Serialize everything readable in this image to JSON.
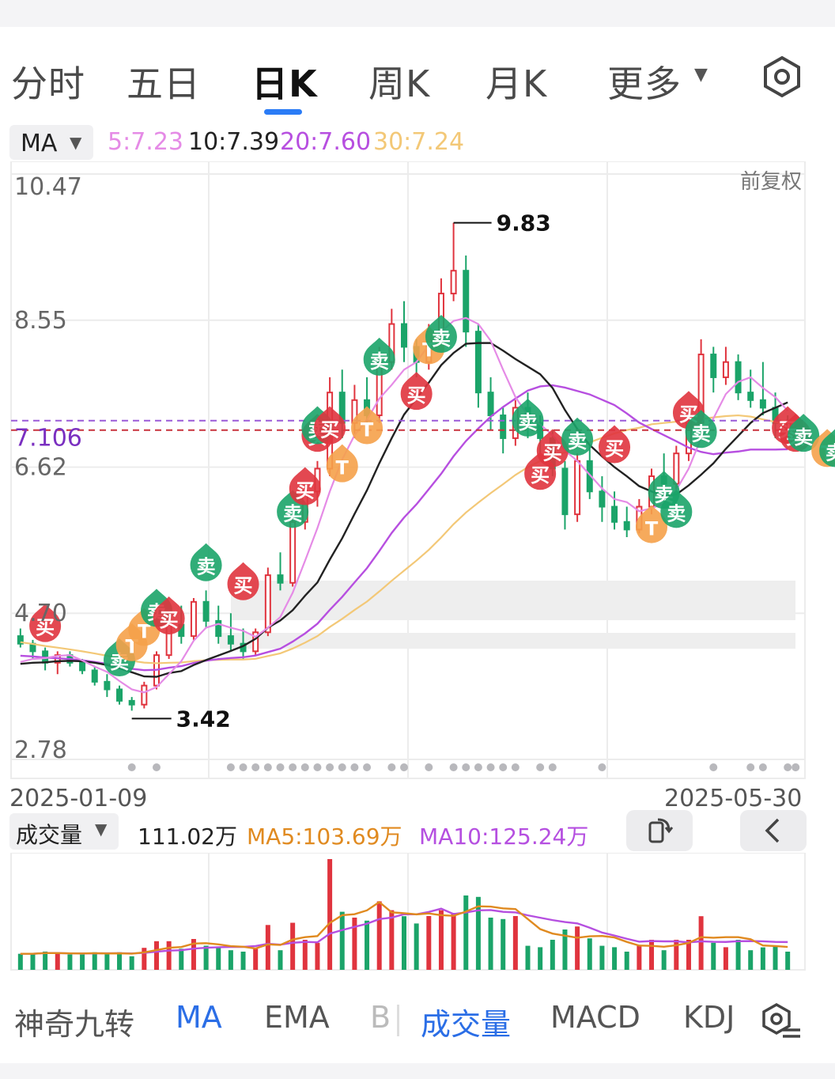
{
  "tabs": [
    {
      "label": "分时",
      "active": false
    },
    {
      "label": "五日",
      "active": false
    },
    {
      "label": "日K",
      "active": true
    },
    {
      "label": "周K",
      "active": false
    },
    {
      "label": "月K",
      "active": false
    },
    {
      "label": "更多",
      "active": false
    }
  ],
  "settings_icon": "settings-hexagon-icon",
  "ma_indicator": {
    "select_label": "MA",
    "ma5": "5:7.23",
    "ma10": "10:7.39",
    "ma20": "20:7.60",
    "ma30": "30:7.24"
  },
  "price_axis": {
    "top": "10.47",
    "l1": "8.55",
    "current": "7.106",
    "l2": "6.62",
    "l3": "4.70",
    "bottom": "2.78"
  },
  "adjust_label": "前复权",
  "marks": {
    "high": "9.83",
    "low": "3.42"
  },
  "signal_labels": {
    "buy": "买",
    "sell": "卖",
    "t": "T"
  },
  "dates": {
    "start": "2025-01-09",
    "end": "2025-05-30"
  },
  "volume": {
    "select_label": "成交量",
    "value": "111.02万",
    "ma5": "MA5:103.69万",
    "ma10": "MA10:125.24万"
  },
  "indicator_tabs": [
    {
      "label": "神奇九转",
      "active": false
    },
    {
      "label": "MA",
      "active": true
    },
    {
      "label": "EMA",
      "active": false
    },
    {
      "label": "B",
      "active": false
    },
    {
      "label": "成交量",
      "active": true
    },
    {
      "label": "MACD",
      "active": false
    },
    {
      "label": "KDJ",
      "active": false
    }
  ],
  "colors": {
    "up": "#e0343e",
    "down": "#1ba469",
    "ma5": "#e58be6",
    "ma10": "#222222",
    "ma20": "#b74fe0",
    "ma30": "#f3c877",
    "t_signal": "#f5a14a",
    "accent": "#2b6ee6",
    "vol_ma5": "#e08a20",
    "vol_ma10": "#b54fe0"
  },
  "chart_data": {
    "type": "candlestick",
    "x_range": [
      "2025-01-09",
      "2025-05-30"
    ],
    "y_range": [
      2.78,
      10.47
    ],
    "y_ticks": [
      10.47,
      8.55,
      6.62,
      4.7,
      2.78
    ],
    "current_price": 7.106,
    "high": 9.83,
    "low": 3.42,
    "candles": [
      [
        4.4,
        4.5,
        4.25,
        4.3
      ],
      [
        4.3,
        4.35,
        4.1,
        4.2
      ],
      [
        4.2,
        4.25,
        3.95,
        4.05
      ],
      [
        4.05,
        4.2,
        3.9,
        4.15
      ],
      [
        4.15,
        4.2,
        4.0,
        4.05
      ],
      [
        4.05,
        4.1,
        3.9,
        3.95
      ],
      [
        3.95,
        4.0,
        3.75,
        3.8
      ],
      [
        3.8,
        3.9,
        3.6,
        3.7
      ],
      [
        3.7,
        3.75,
        3.5,
        3.55
      ],
      [
        3.55,
        3.6,
        3.42,
        3.5
      ],
      [
        3.5,
        3.8,
        3.45,
        3.75
      ],
      [
        3.75,
        4.2,
        3.7,
        4.15
      ],
      [
        4.15,
        4.6,
        4.1,
        4.55
      ],
      [
        4.55,
        4.8,
        4.3,
        4.4
      ],
      [
        4.4,
        4.9,
        4.35,
        4.85
      ],
      [
        4.85,
        5.0,
        4.5,
        4.6
      ],
      [
        4.6,
        4.8,
        4.3,
        4.4
      ],
      [
        4.4,
        4.7,
        4.2,
        4.3
      ],
      [
        4.3,
        4.5,
        4.1,
        4.2
      ],
      [
        4.2,
        4.5,
        4.15,
        4.45
      ],
      [
        4.45,
        5.3,
        4.4,
        5.2
      ],
      [
        5.2,
        5.5,
        5.0,
        5.1
      ],
      [
        5.1,
        6.0,
        5.05,
        5.9
      ],
      [
        5.9,
        6.4,
        5.8,
        6.3
      ],
      [
        6.3,
        6.7,
        6.1,
        6.6
      ],
      [
        6.6,
        7.8,
        6.5,
        7.6
      ],
      [
        7.6,
        7.9,
        7.0,
        7.2
      ],
      [
        7.2,
        7.7,
        7.0,
        7.5
      ],
      [
        7.5,
        7.8,
        7.1,
        7.3
      ],
      [
        7.3,
        8.2,
        7.2,
        8.0
      ],
      [
        8.0,
        8.7,
        7.9,
        8.5
      ],
      [
        8.5,
        8.8,
        8.0,
        8.2
      ],
      [
        8.2,
        8.3,
        7.8,
        8.0
      ],
      [
        8.0,
        8.5,
        7.9,
        8.4
      ],
      [
        8.4,
        9.1,
        8.3,
        8.9
      ],
      [
        8.9,
        9.83,
        8.8,
        9.2
      ],
      [
        9.2,
        9.4,
        8.2,
        8.4
      ],
      [
        8.4,
        8.5,
        7.4,
        7.6
      ],
      [
        7.6,
        7.8,
        7.1,
        7.3
      ],
      [
        7.3,
        7.4,
        6.8,
        7.0
      ],
      [
        7.0,
        7.5,
        6.9,
        7.4
      ],
      [
        7.4,
        7.6,
        7.0,
        7.2
      ],
      [
        7.2,
        7.3,
        6.8,
        7.0
      ],
      [
        7.0,
        7.1,
        6.5,
        6.6
      ],
      [
        6.6,
        6.7,
        5.8,
        6.0
      ],
      [
        6.0,
        6.8,
        5.9,
        6.7
      ],
      [
        6.7,
        6.9,
        6.2,
        6.3
      ],
      [
        6.3,
        6.5,
        5.9,
        6.1
      ],
      [
        6.1,
        6.3,
        5.8,
        5.9
      ],
      [
        5.9,
        6.1,
        5.7,
        5.8
      ],
      [
        5.8,
        6.2,
        5.75,
        6.1
      ],
      [
        6.1,
        6.6,
        6.0,
        6.5
      ],
      [
        6.5,
        6.8,
        6.3,
        6.4
      ],
      [
        6.4,
        6.9,
        6.3,
        6.8
      ],
      [
        6.8,
        7.3,
        6.7,
        7.2
      ],
      [
        7.2,
        8.3,
        7.1,
        8.1
      ],
      [
        8.1,
        8.2,
        7.6,
        7.8
      ],
      [
        7.8,
        8.2,
        7.7,
        8.0
      ],
      [
        8.0,
        8.1,
        7.5,
        7.6
      ],
      [
        7.6,
        7.9,
        7.4,
        7.5
      ],
      [
        7.5,
        8.0,
        7.3,
        7.4
      ],
      [
        7.4,
        7.6,
        7.0,
        7.2
      ],
      [
        7.2,
        7.3,
        6.9,
        7.1
      ]
    ],
    "ma5_label": "5:7.23",
    "ma10_label": "10:7.39",
    "ma20_label": "20:7.60",
    "ma30_label": "30:7.24"
  }
}
